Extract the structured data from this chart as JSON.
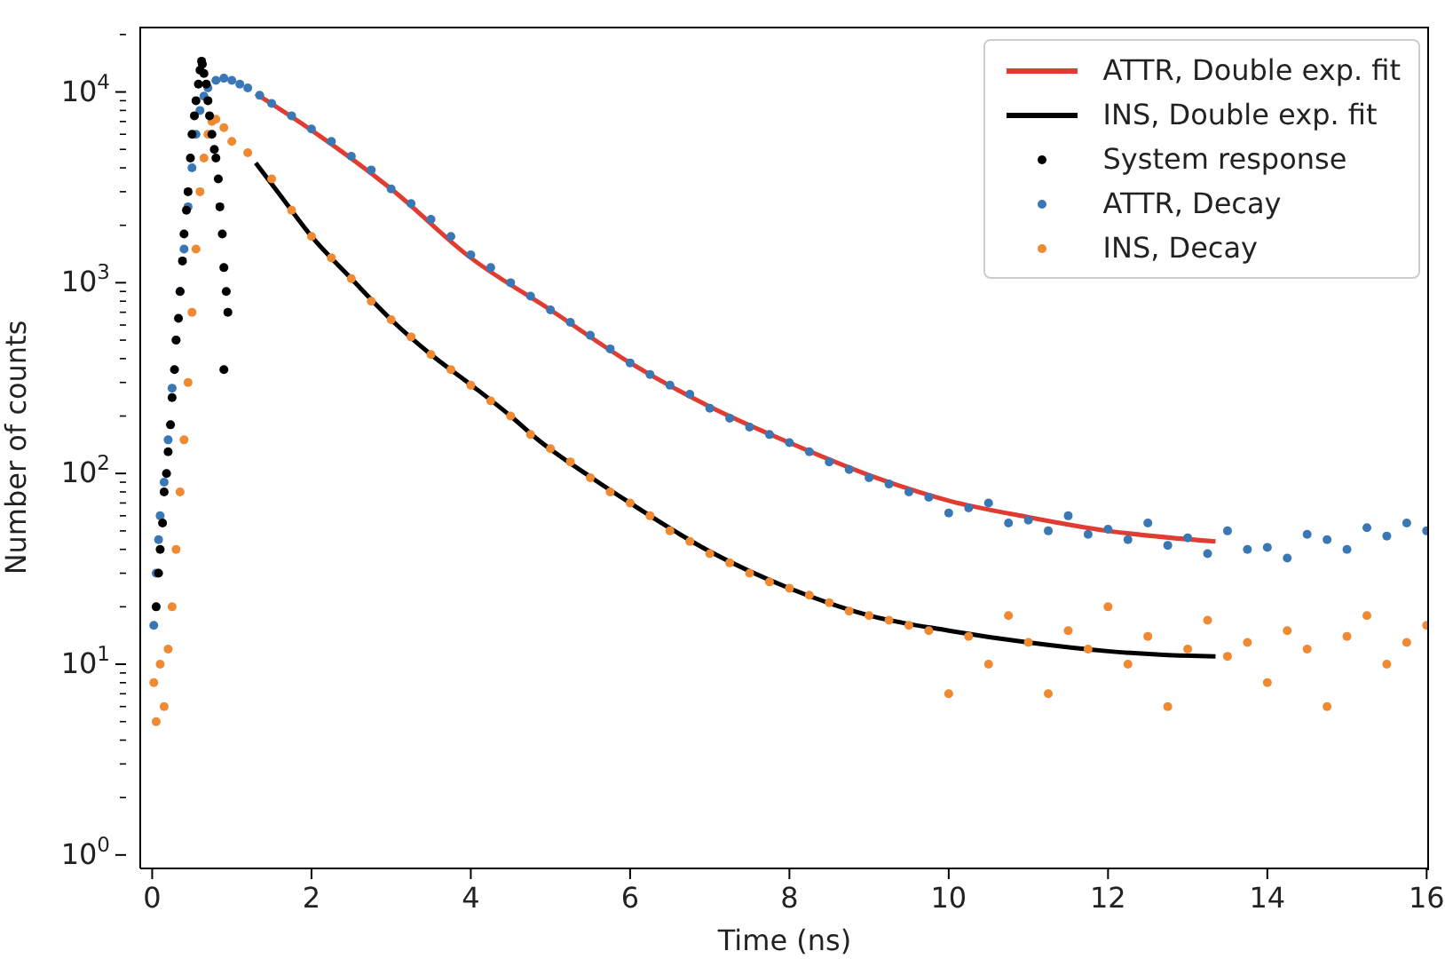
{
  "chart_data": {
    "type": "scatter",
    "xlabel": "Time (ns)",
    "ylabel": "Number of counts",
    "xlim": [
      -0.15,
      16.03
    ],
    "xticks": [
      0,
      2,
      4,
      6,
      8,
      10,
      12,
      14,
      16
    ],
    "log": "y",
    "ylim": [
      0.85,
      22000
    ],
    "yticks": [
      {
        "value": 1,
        "label": "10$^{0}$"
      },
      {
        "value": 2,
        "label": null
      },
      {
        "value": 3,
        "label": null
      },
      {
        "value": 4,
        "label": null
      },
      {
        "value": 5,
        "label": null
      },
      {
        "value": 6,
        "label": null
      },
      {
        "value": 7,
        "label": null
      },
      {
        "value": 8,
        "label": null
      },
      {
        "value": 9,
        "label": null
      },
      {
        "value": 10,
        "label": "10$^{1}$"
      },
      {
        "value": 20,
        "label": null
      },
      {
        "value": 30,
        "label": null
      },
      {
        "value": 40,
        "label": null
      },
      {
        "value": 50,
        "label": null
      },
      {
        "value": 60,
        "label": null
      },
      {
        "value": 70,
        "label": null
      },
      {
        "value": 80,
        "label": null
      },
      {
        "value": 90,
        "label": null
      },
      {
        "value": 100,
        "label": "10$^{2}$"
      },
      {
        "value": 200,
        "label": null
      },
      {
        "value": 300,
        "label": null
      },
      {
        "value": 400,
        "label": null
      },
      {
        "value": 500,
        "label": null
      },
      {
        "value": 600,
        "label": null
      },
      {
        "value": 700,
        "label": null
      },
      {
        "value": 800,
        "label": null
      },
      {
        "value": 900,
        "label": null
      },
      {
        "value": 1000,
        "label": "10$^{3}$"
      },
      {
        "value": 2000,
        "label": null
      },
      {
        "value": 3000,
        "label": null
      },
      {
        "value": 4000,
        "label": null
      },
      {
        "value": 5000,
        "label": null
      },
      {
        "value": 6000,
        "label": null
      },
      {
        "value": 7000,
        "label": null
      },
      {
        "value": 8000,
        "label": null
      },
      {
        "value": 9000,
        "label": null
      },
      {
        "value": 10000,
        "label": "10$^{4}$"
      },
      {
        "value": 20000,
        "label": null
      }
    ],
    "grid": false,
    "legend": "top right",
    "line_style": "solid",
    "series": [
      {
        "name": "ATTR, Double exp. fit",
        "type": "line",
        "marker": "none",
        "color": "#e03c31",
        "x": [
          1.3,
          2,
          3,
          4,
          5,
          6,
          7,
          8,
          9,
          10,
          11,
          12,
          13.35
        ],
        "values": [
          9800,
          6300,
          3100,
          1350,
          720,
          380,
          224,
          145,
          98,
          72,
          59,
          50,
          44
        ]
      },
      {
        "name": "INS, Double exp. fit",
        "type": "line",
        "marker": "none",
        "color": "#000000",
        "x": [
          1.3,
          1.6,
          2,
          2.5,
          3,
          3.5,
          4,
          4.5,
          4.82,
          5.5,
          6,
          7,
          8,
          9,
          10,
          11,
          12,
          12.7,
          13.35
        ],
        "values": [
          4250,
          2900,
          1750,
          1050,
          640,
          420,
          292,
          200,
          153,
          96,
          70,
          39,
          25,
          18,
          15,
          13,
          11.7,
          11.2,
          11
        ]
      },
      {
        "name": "System response",
        "marker": "circle",
        "color": "#000000",
        "x": [
          0.05,
          0.08,
          0.1,
          0.13,
          0.15,
          0.18,
          0.2,
          0.23,
          0.25,
          0.28,
          0.3,
          0.33,
          0.35,
          0.38,
          0.4,
          0.43,
          0.45,
          0.48,
          0.5,
          0.53,
          0.55,
          0.58,
          0.6,
          0.62,
          0.63,
          0.65,
          0.68,
          0.7,
          0.72,
          0.75,
          0.78,
          0.8,
          0.83,
          0.85,
          0.88,
          0.9,
          0.93,
          0.95,
          0.9
        ],
        "values": [
          20,
          30,
          40,
          55,
          80,
          100,
          130,
          180,
          250,
          350,
          500,
          650,
          900,
          1300,
          1800,
          2400,
          3000,
          4500,
          6000,
          7500,
          9000,
          11000,
          13000,
          14500,
          14000,
          12500,
          11000,
          9000,
          7500,
          6000,
          5000,
          4500,
          3500,
          2500,
          1800,
          1200,
          900,
          700,
          350
        ]
      },
      {
        "name": "ATTR, Decay",
        "marker": "circle",
        "color": "#3a78b5",
        "x": [
          0.02,
          0.05,
          0.08,
          0.1,
          0.15,
          0.2,
          0.25,
          0.3,
          0.35,
          0.4,
          0.45,
          0.5,
          0.55,
          0.6,
          0.65,
          0.7,
          0.8,
          0.9,
          1.0,
          1.1,
          1.2,
          1.35,
          1.5,
          1.75,
          2,
          2.25,
          2.5,
          2.75,
          3,
          3.25,
          3.5,
          3.75,
          4,
          4.25,
          4.5,
          4.75,
          5,
          5.25,
          5.5,
          5.75,
          6,
          6.25,
          6.5,
          6.75,
          7,
          7.25,
          7.5,
          7.75,
          8,
          8.25,
          8.5,
          8.75,
          9,
          9.25,
          9.5,
          9.75,
          10,
          10.25,
          10.5,
          10.75,
          11,
          11.25,
          11.5,
          11.75,
          12,
          12.25,
          12.5,
          12.75,
          13,
          13.25,
          13.5,
          13.75,
          14,
          14.25,
          14.5,
          14.75,
          15,
          15.25,
          15.5,
          15.75,
          16
        ],
        "values": [
          16,
          30,
          45,
          60,
          90,
          150,
          280,
          500,
          900,
          1500,
          2500,
          4000,
          6000,
          8000,
          9500,
          10500,
          11500,
          11800,
          11500,
          11000,
          10500,
          9600,
          8700,
          7500,
          6400,
          5500,
          4600,
          3900,
          3100,
          2600,
          2150,
          1750,
          1400,
          1200,
          1000,
          850,
          720,
          620,
          530,
          450,
          380,
          330,
          290,
          260,
          220,
          195,
          175,
          160,
          145,
          130,
          115,
          105,
          95,
          88,
          80,
          75,
          62,
          66,
          70,
          55,
          57,
          50,
          60,
          48,
          51,
          45,
          55,
          42,
          46,
          38,
          50,
          40,
          41,
          36,
          48,
          45,
          40,
          52,
          47,
          55,
          50
        ]
      },
      {
        "name": "INS, Decay",
        "marker": "circle",
        "color": "#f08a32",
        "x": [
          0.02,
          0.05,
          0.1,
          0.15,
          0.2,
          0.25,
          0.3,
          0.35,
          0.4,
          0.45,
          0.5,
          0.55,
          0.6,
          0.65,
          0.7,
          0.75,
          0.8,
          0.9,
          1.0,
          1.2,
          1.5,
          1.75,
          2,
          2.25,
          2.5,
          2.75,
          3,
          3.25,
          3.5,
          3.75,
          4,
          4.25,
          4.5,
          4.75,
          5,
          5.25,
          5.5,
          5.75,
          6,
          6.25,
          6.5,
          6.75,
          7,
          7.25,
          7.5,
          7.75,
          8,
          8.25,
          8.5,
          8.75,
          9,
          9.25,
          9.5,
          9.75,
          10,
          10.25,
          10.5,
          10.75,
          11,
          11.25,
          11.5,
          11.75,
          12,
          12.25,
          12.5,
          12.75,
          13,
          13.25,
          13.5,
          13.75,
          14,
          14.25,
          14.5,
          14.75,
          15,
          15.25,
          15.5,
          15.75,
          16
        ],
        "values": [
          8,
          5,
          10,
          6,
          12,
          20,
          40,
          80,
          150,
          300,
          700,
          1500,
          3000,
          4500,
          6000,
          7000,
          7200,
          6500,
          5500,
          4800,
          3500,
          2400,
          1750,
          1350,
          1050,
          800,
          640,
          520,
          420,
          350,
          290,
          240,
          200,
          160,
          135,
          115,
          95,
          80,
          70,
          60,
          50,
          44,
          38,
          34,
          30,
          27,
          25,
          23,
          21,
          19,
          18,
          17,
          16,
          15,
          7,
          14,
          10,
          18,
          13,
          7,
          15,
          12,
          20,
          10,
          14,
          6,
          12,
          17,
          11,
          13,
          8,
          15,
          12,
          6,
          14,
          18,
          10,
          13,
          16
        ]
      }
    ]
  }
}
